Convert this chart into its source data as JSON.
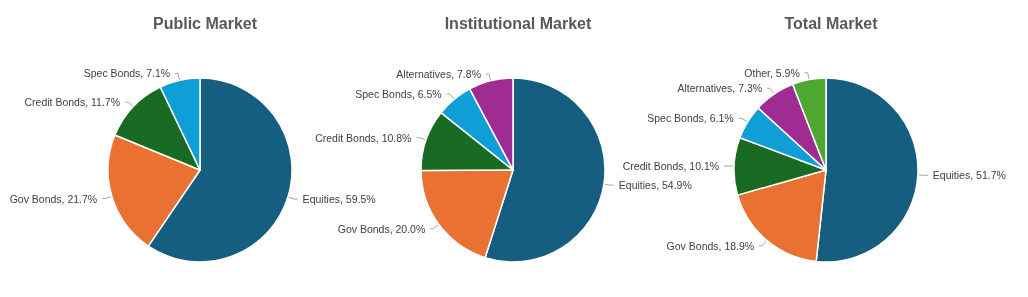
{
  "chart_data": [
    {
      "type": "pie",
      "title": "Public Market",
      "categories": [
        "Equities",
        "Gov Bonds",
        "Credit Bonds",
        "Spec Bonds"
      ],
      "values": [
        59.5,
        21.7,
        11.7,
        7.1
      ],
      "value_labels": [
        "59.5%",
        "21.7%",
        "11.7%",
        "7.1%"
      ],
      "colors": [
        "#165e80",
        "#e97132",
        "#196b24",
        "#0f9ed5"
      ]
    },
    {
      "type": "pie",
      "title": "Institutional Market",
      "categories": [
        "Equities",
        "Gov Bonds",
        "Credit Bonds",
        "Spec Bonds",
        "Alternatives"
      ],
      "values": [
        54.9,
        20.0,
        10.8,
        6.5,
        7.8
      ],
      "value_labels": [
        "54.9%",
        "20.0%",
        "10.8%",
        "6.5%",
        "7.8%"
      ],
      "colors": [
        "#165e80",
        "#e97132",
        "#196b24",
        "#0f9ed5",
        "#a02b93"
      ]
    },
    {
      "type": "pie",
      "title": "Total Market",
      "categories": [
        "Equities",
        "Gov Bonds",
        "Credit Bonds",
        "Spec Bonds",
        "Alternatives",
        "Other"
      ],
      "values": [
        51.7,
        18.9,
        10.1,
        6.1,
        7.3,
        5.9
      ],
      "value_labels": [
        "51.7%",
        "18.9%",
        "10.1%",
        "6.1%",
        "7.3%",
        "5.9%"
      ],
      "colors": [
        "#165e80",
        "#e97132",
        "#196b24",
        "#0f9ed5",
        "#a02b93",
        "#4ea72e"
      ]
    }
  ]
}
